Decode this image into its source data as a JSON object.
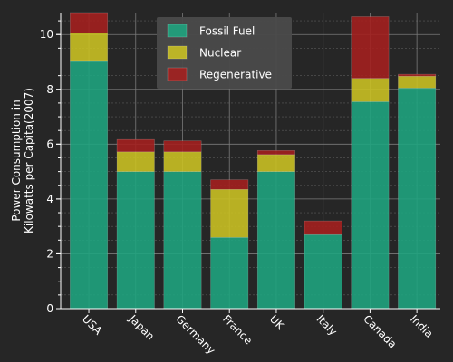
{
  "chart_data": {
    "type": "bar",
    "stacked": true,
    "categories": [
      "USA",
      "Japan",
      "Germany",
      "France",
      "UK",
      "Italy",
      "Canada",
      "India"
    ],
    "series": [
      {
        "name": "Fossil Fuel",
        "color": "#1fa37e",
        "values": [
          9.05,
          5.0,
          5.0,
          2.6,
          5.0,
          2.7,
          7.55,
          8.05
        ]
      },
      {
        "name": "Nuclear",
        "color": "#c9c024",
        "values": [
          1.0,
          0.72,
          0.72,
          1.75,
          0.62,
          0.0,
          0.85,
          0.43
        ]
      },
      {
        "name": "Regenerative",
        "color": "#a3201f",
        "values": [
          0.75,
          0.45,
          0.4,
          0.35,
          0.15,
          0.5,
          2.25,
          0.07
        ]
      }
    ],
    "ylabel": "Power Consumption in\nKilowatts per Capita(2007)",
    "yticks": [
      0,
      2,
      4,
      6,
      8,
      10
    ],
    "ylim": [
      0,
      10.8
    ],
    "grid": true,
    "legend_position": "top-center"
  }
}
